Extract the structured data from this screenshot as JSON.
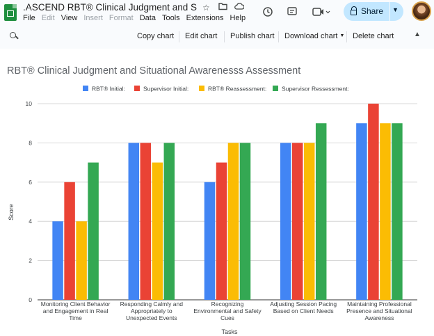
{
  "app": {
    "doc_title": ".ASCEND RBT® Clinical Judgment and Situ...",
    "menu": [
      {
        "label": "File",
        "enabled": true
      },
      {
        "label": "Edit",
        "enabled": false
      },
      {
        "label": "View",
        "enabled": true
      },
      {
        "label": "Insert",
        "enabled": false
      },
      {
        "label": "Format",
        "enabled": false
      },
      {
        "label": "Data",
        "enabled": true
      },
      {
        "label": "Tools",
        "enabled": true
      },
      {
        "label": "Extensions",
        "enabled": true
      },
      {
        "label": "Help",
        "enabled": true
      }
    ],
    "share_label": "Share"
  },
  "icons": {
    "app": "sheets-icon",
    "star": "star-icon",
    "folder": "move-folder-icon",
    "cloud": "cloud-status-icon",
    "history": "history-icon",
    "comment": "comment-icon",
    "meet": "video-call-icon",
    "share": "lock-icon",
    "search": "search-icon",
    "collapse": "chevron-up-icon"
  },
  "colors": {
    "accent": "#1e8e3e",
    "share_bg": "#c2e7ff",
    "series": [
      "#4285f4",
      "#ea4335",
      "#fbbc04",
      "#34a853"
    ]
  },
  "chart_toolbar": {
    "copy": "Copy chart",
    "edit": "Edit chart",
    "publish": "Publish chart",
    "download": "Download chart",
    "delete": "Delete chart"
  },
  "chart_data": {
    "type": "bar",
    "title": "RBT® Clinical Judgment and Situational Awarenesss Assessment",
    "xlabel": "Tasks",
    "ylabel": "Score",
    "ylim": [
      0,
      10
    ],
    "yticks": [
      0,
      2,
      4,
      6,
      8,
      10
    ],
    "grid": true,
    "legend_position": "top",
    "categories": [
      [
        "Monitoring Client Behavior",
        "and Engagement in Real",
        "Time"
      ],
      [
        "Responding Calmly and",
        "Appropriately to",
        "Unexpected Events"
      ],
      [
        "Recognizing",
        "Environmental and Safety",
        "Cues"
      ],
      [
        "Adjusting Session Pacing",
        "Based on Client Needs"
      ],
      [
        "Maintaining Professional",
        "Presence and Situational",
        "Awareness"
      ]
    ],
    "series": [
      {
        "name": "RBT® Initial:",
        "values": [
          4,
          8,
          6,
          8,
          9
        ]
      },
      {
        "name": "Supervisor Initial:",
        "values": [
          6,
          8,
          7,
          8,
          10
        ]
      },
      {
        "name": "RBT® Reassessment:",
        "values": [
          4,
          7,
          8,
          8,
          9
        ]
      },
      {
        "name": "Supervisor Ressessment:",
        "values": [
          7,
          8,
          8,
          9,
          9
        ]
      }
    ]
  }
}
